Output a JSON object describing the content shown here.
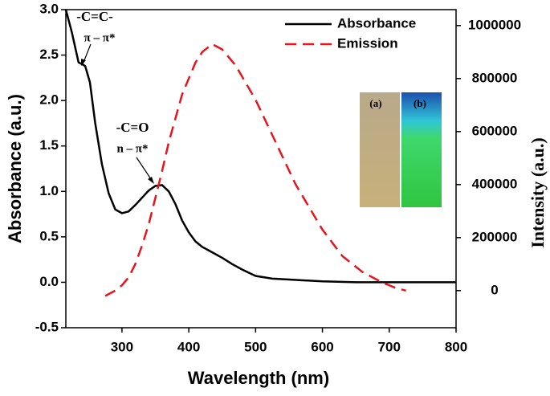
{
  "chart_data": {
    "type": "line",
    "x_label": "Wavelength (nm)",
    "y_label": "Absorbance (a.u.)",
    "y2_label": "Intensity (a.u.)",
    "xlim": [
      216,
      800
    ],
    "xticks": [
      300,
      400,
      500,
      600,
      700,
      800
    ],
    "ylim": [
      -0.5,
      3.0
    ],
    "yticks": [
      -0.5,
      {
        "value": 0,
        "label": "0.0"
      },
      0.5,
      {
        "value": 1,
        "label": "1.0"
      },
      1.5,
      {
        "value": 2,
        "label": "2.0"
      },
      2.5,
      {
        "value": 3,
        "label": "3.0"
      }
    ],
    "y2lim": [
      -140000,
      1060000
    ],
    "y2ticks": [
      0,
      200000,
      400000,
      600000,
      800000,
      1000000
    ],
    "legend": "top-right",
    "series": [
      {
        "name": "Absorbance",
        "color": "#000000",
        "dash": false,
        "x": [
          216,
          225,
          235,
          245,
          252,
          260,
          270,
          280,
          290,
          300,
          310,
          320,
          330,
          340,
          350,
          360,
          370,
          380,
          390,
          400,
          410,
          420,
          435,
          450,
          465,
          480,
          500,
          525,
          550,
          600,
          650,
          700,
          750,
          800
        ],
        "values": [
          3.0,
          2.75,
          2.42,
          2.38,
          2.2,
          1.75,
          1.3,
          0.98,
          0.8,
          0.76,
          0.78,
          0.85,
          0.93,
          1.01,
          1.06,
          1.07,
          1.0,
          0.86,
          0.68,
          0.55,
          0.45,
          0.39,
          0.33,
          0.27,
          0.2,
          0.14,
          0.07,
          0.04,
          0.03,
          0.01,
          0.0,
          0.0,
          0.0,
          0.0
        ]
      },
      {
        "name": "Emission",
        "color": "#e8141c",
        "dash": true,
        "axis": "y2",
        "x": [
          275,
          290,
          300,
          310,
          320,
          330,
          340,
          350,
          360,
          370,
          380,
          390,
          400,
          410,
          420,
          435,
          450,
          470,
          500,
          530,
          560,
          600,
          630,
          660,
          690,
          710,
          725
        ],
        "values": [
          -20000,
          0,
          20000,
          50000,
          100000,
          170000,
          250000,
          350000,
          450000,
          560000,
          650000,
          740000,
          800000,
          860000,
          900000,
          930000,
          910000,
          850000,
          720000,
          560000,
          400000,
          230000,
          130000,
          70000,
          30000,
          10000,
          0
        ]
      }
    ],
    "annotations": [
      "-C=C-",
      "π – π*",
      "-C=O",
      "n – π*"
    ],
    "inset_labels": [
      "(a)",
      "(b)"
    ]
  }
}
